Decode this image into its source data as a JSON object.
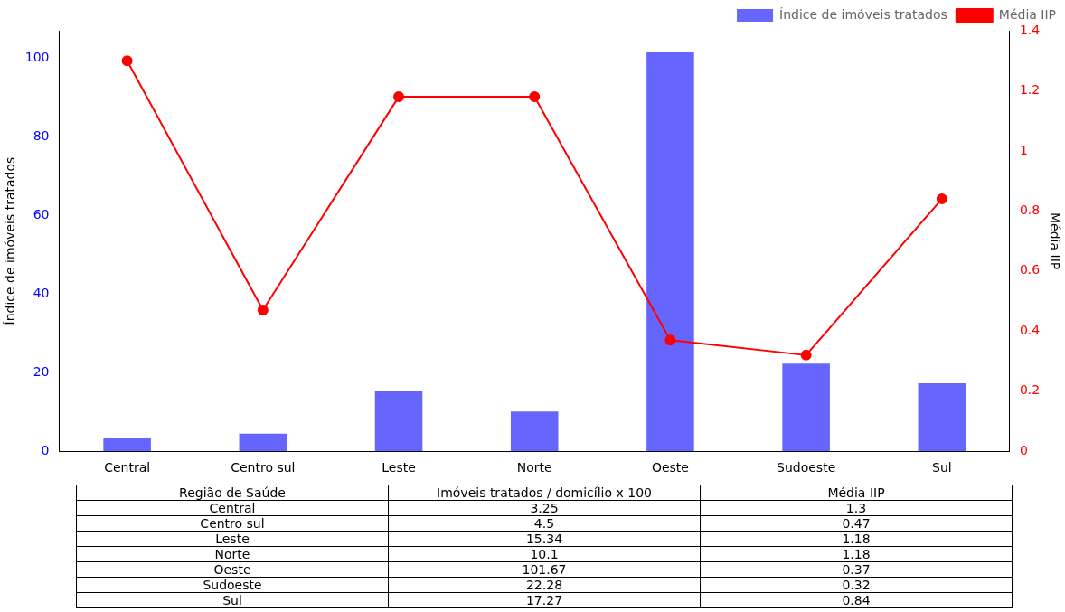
{
  "chart_data": [
    {
      "type": "bar",
      "categories": [
        "Central",
        "Centro sul",
        "Leste",
        "Norte",
        "Oeste",
        "Sudoeste",
        "Sul"
      ],
      "series": [
        {
          "name": "Índice de imóveis tratados",
          "color": "#6666ff",
          "values": [
            3.25,
            4.5,
            15.34,
            10.1,
            101.67,
            22.28,
            17.27
          ]
        },
        {
          "name": "Média IIP",
          "type": "line",
          "axis": "y2",
          "color": "#ff0000",
          "marker": "circle",
          "values": [
            1.3,
            0.47,
            1.18,
            1.18,
            0.37,
            0.32,
            0.84
          ]
        }
      ],
      "ylabel": "Índice de imóveis tratados",
      "y2label": "Média IIP",
      "ylim": [
        0,
        107
      ],
      "yticks": [
        0,
        20,
        40,
        60,
        80,
        100
      ],
      "y2lim": [
        0,
        1.4
      ],
      "y2ticks": [
        0,
        0.2,
        0.4,
        0.6,
        0.8,
        1.0,
        1.2,
        1.4
      ],
      "legend": "top right"
    },
    {
      "type": "other",
      "annotations": [
        "Região de Saúde",
        "Imóveis tratados / domicílio x 100",
        "Média IIP",
        "Central",
        "3.25",
        "1.3",
        "Centro sul",
        "4.5",
        "0.47",
        "Leste",
        "15.34",
        "1.18",
        "Norte",
        "10.1",
        "1.18",
        "Oeste",
        "101.67",
        "0.37",
        "Sudoeste",
        "22.28",
        "0.32",
        "Sul",
        "17.27",
        "0.84"
      ]
    }
  ]
}
